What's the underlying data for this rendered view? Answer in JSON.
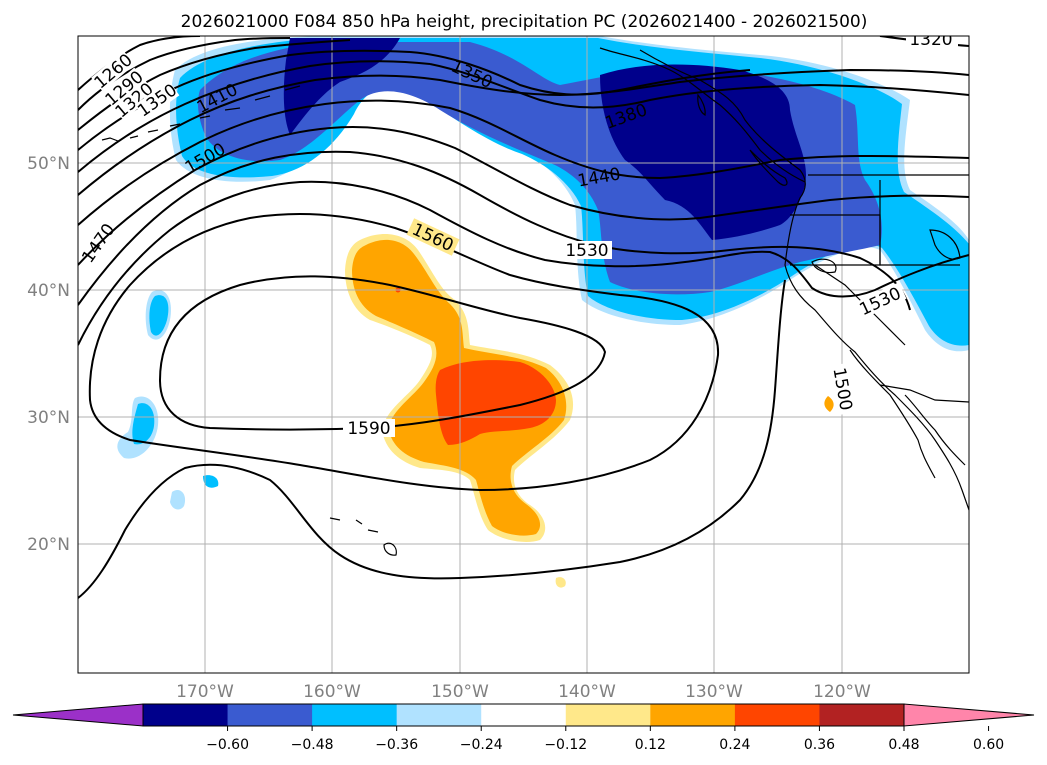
{
  "title": "2026021000 F084 850 hPa height, precipitation PC (2026021400 - 2026021500)",
  "axes": {
    "lat_labels": [
      "50°N",
      "40°N",
      "30°N",
      "20°N"
    ],
    "lon_labels": [
      "170°W",
      "160°W",
      "150°W",
      "140°W",
      "130°W",
      "120°W"
    ],
    "gridlines": true
  },
  "colorbar": {
    "orientation": "horizontal",
    "extend": "both",
    "ticks": [
      "−0.60",
      "−0.48",
      "−0.36",
      "−0.24",
      "−0.12",
      "0.12",
      "0.24",
      "0.36",
      "0.48",
      "0.60"
    ],
    "colors": [
      "#9b30c8",
      "#00008b",
      "#3a5bd0",
      "#00bfff",
      "#b0e2ff",
      "#ffffff",
      "#ffe88a",
      "#ffa500",
      "#ff4500",
      "#b22222",
      "#ff85aa"
    ]
  },
  "contours": {
    "labels": [
      "1260",
      "1290",
      "1320",
      "1350",
      "1410",
      "1500",
      "1470",
      "1350",
      "1380",
      "1440",
      "1320",
      "1560",
      "1530",
      "1530",
      "1500",
      "1590"
    ]
  }
}
